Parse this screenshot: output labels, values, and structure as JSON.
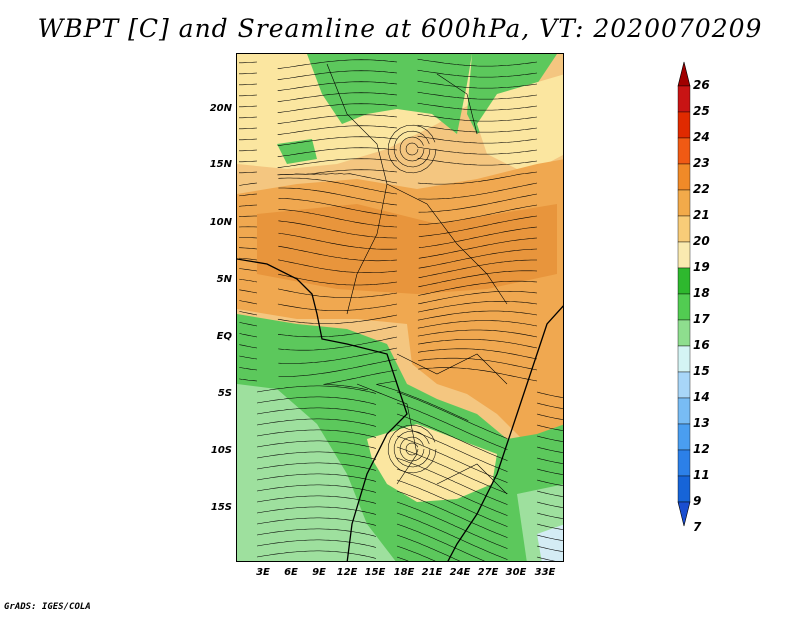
{
  "title": "WBPT [C] and Sreamline at 600hPa, VT: 2020070209",
  "credit": "GrADS: IGES/COLA",
  "lat_labels": [
    "20N",
    "15N",
    "10N",
    "5N",
    "EQ",
    "5S",
    "10S",
    "15S"
  ],
  "lon_labels": [
    "3E",
    "6E",
    "9E",
    "12E",
    "15E",
    "18E",
    "21E",
    "24E",
    "27E",
    "30E",
    "33E"
  ],
  "colorbar": {
    "levels": [
      "26",
      "25",
      "24",
      "23",
      "22",
      "21",
      "20",
      "19",
      "18",
      "17",
      "16",
      "15",
      "14",
      "13",
      "12",
      "11",
      "9",
      "7"
    ],
    "colors": [
      "#a00000",
      "#c81414",
      "#e02a00",
      "#f05a14",
      "#f08a28",
      "#f2aa4a",
      "#f8cc78",
      "#faeab0",
      "#2eb82e",
      "#52cc52",
      "#8ede8e",
      "#d4f4f4",
      "#a8d6f8",
      "#78bcf4",
      "#4a9ef0",
      "#2c80e8",
      "#1664d8",
      "#1a4ed0"
    ]
  },
  "map": {
    "color_legend": {
      "green": "#5cc85c",
      "light_green": "#9ee09e",
      "yellow": "#fbe6a0",
      "light_orange": "#f6c878",
      "orange": "#f0a850",
      "dark_orange": "#e8953c",
      "pale_blue": "#d4ecf4",
      "coast": "#000000"
    }
  }
}
